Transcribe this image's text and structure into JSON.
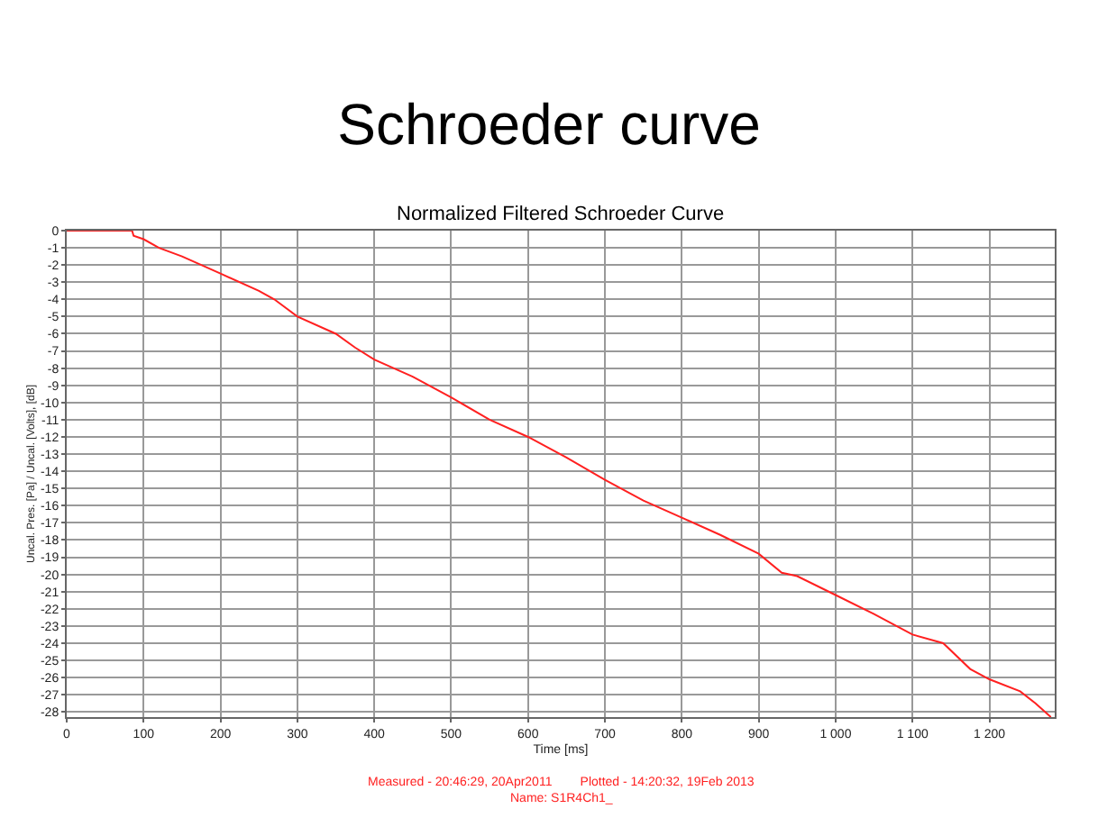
{
  "chart_data": {
    "type": "line",
    "title": "Schroeder curve",
    "subtitle": "Normalized Filtered Schroeder Curve",
    "xlabel": "Time [ms]",
    "ylabel": "Uncal. Pres. [Pa] / Uncal. [Volts], [dB]",
    "x": [
      0,
      85,
      87,
      100,
      120,
      150,
      200,
      250,
      270,
      300,
      350,
      375,
      400,
      450,
      500,
      550,
      600,
      650,
      700,
      750,
      800,
      850,
      900,
      930,
      950,
      1000,
      1050,
      1100,
      1140,
      1175,
      1200,
      1240,
      1260,
      1280
    ],
    "series": [
      {
        "color": "#ff2020",
        "values": [
          0,
          0,
          -0.3,
          -0.5,
          -1,
          -1.5,
          -2.5,
          -3.5,
          -4,
          -5,
          -6,
          -6.8,
          -7.5,
          -8.5,
          -9.7,
          -11,
          -12,
          -13.2,
          -14.5,
          -15.7,
          -16.7,
          -17.7,
          -18.8,
          -19.9,
          -20.1,
          -21.2,
          -22.3,
          -23.5,
          -24,
          -25.5,
          -26.1,
          -26.8,
          -27.5,
          -28.3
        ]
      }
    ],
    "xlim": [
      0,
      1285
    ],
    "ylim": [
      -28.3,
      0
    ],
    "xticks": [
      0,
      100,
      200,
      300,
      400,
      500,
      600,
      700,
      800,
      900,
      {
        "value": 1000,
        "label": "1 000"
      },
      {
        "value": 1100,
        "label": "1 100"
      },
      {
        "value": 1200,
        "label": "1 200"
      }
    ],
    "yticks": [
      0,
      -1,
      -2,
      -3,
      -4,
      -5,
      -6,
      -7,
      -8,
      -9,
      -10,
      -11,
      -12,
      -13,
      -14,
      -15,
      -16,
      -17,
      -18,
      -19,
      -20,
      -21,
      -22,
      -23,
      -24,
      -25,
      -26,
      -27,
      -28
    ],
    "grid": true,
    "marker": "none",
    "line_style": "solid",
    "annotations": [
      "Measured - 20:46:29, 20Apr2011        Plotted - 14:20:32, 19Feb 2013",
      "Name: S1R4Ch1_"
    ]
  }
}
